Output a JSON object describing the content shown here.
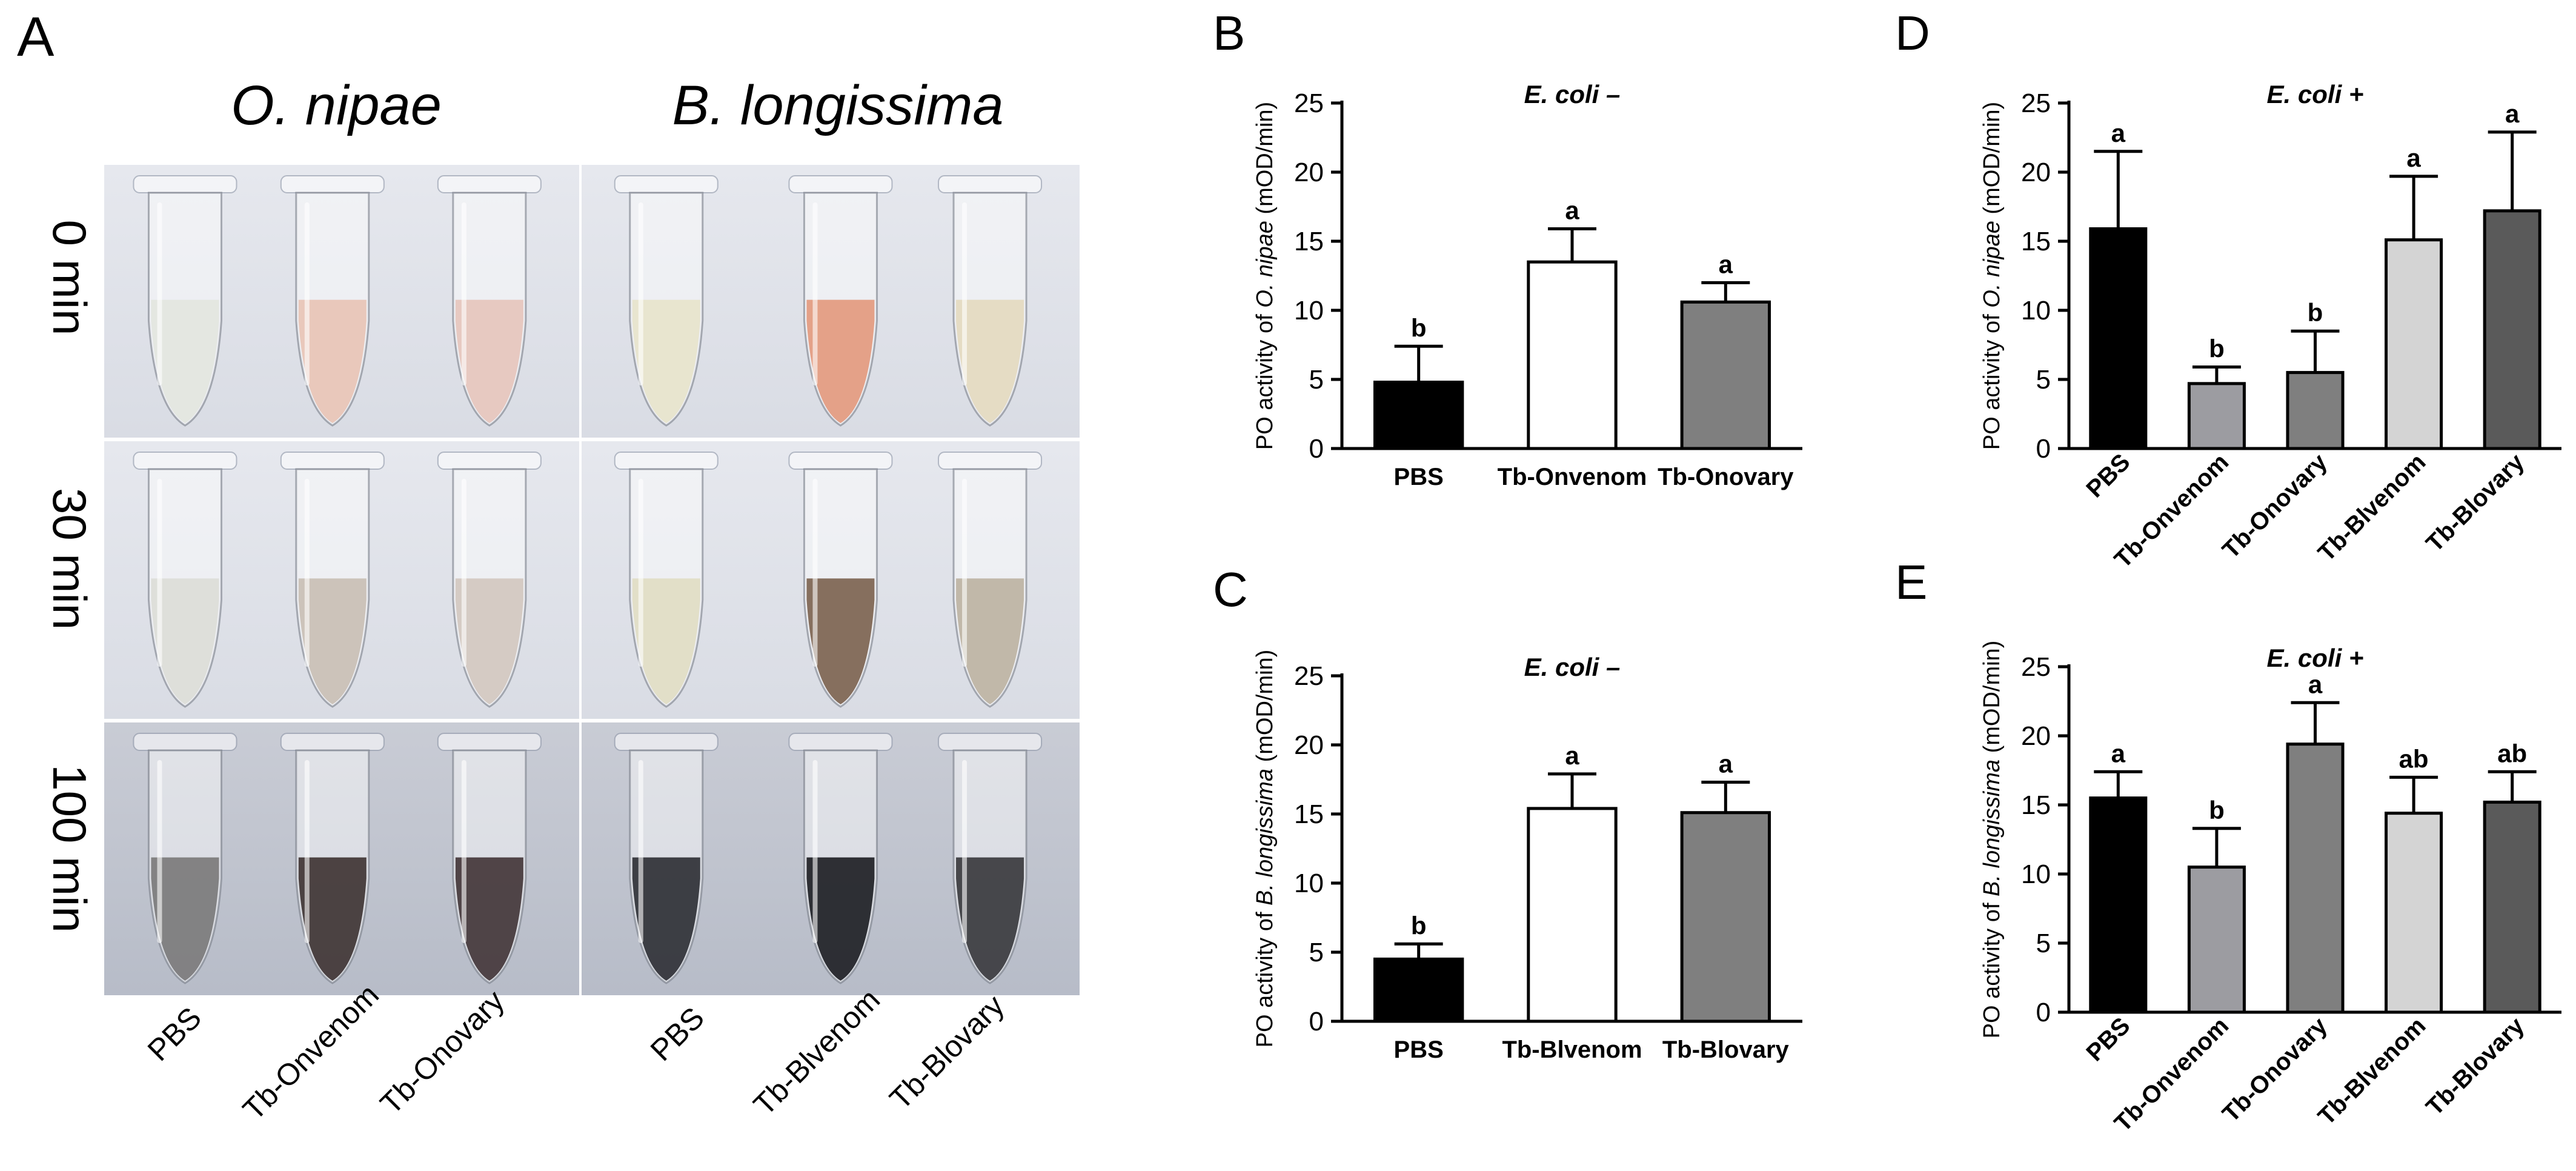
{
  "panel_letters": {
    "A": "A",
    "B": "B",
    "C": "C",
    "D": "D",
    "E": "E"
  },
  "photo": {
    "species": [
      "O. nipae",
      "B. longissima"
    ],
    "times": [
      "0 min",
      "30 min",
      "100 min"
    ],
    "tube_labels_left": [
      "PBS",
      "Tb-Onvenom",
      "Tb-Onovary"
    ],
    "tube_labels_right": [
      "PBS",
      "Tb-Blvenom",
      "Tb-Blovary"
    ]
  },
  "colors": {
    "black": "#000000",
    "white": "#ffffff",
    "gray": "#7f7f7f",
    "midgray": "#9c9ca1",
    "lightgray": "#d4d4d4",
    "darkgray": "#5a5a5a"
  },
  "chart_data": [
    {
      "id": "B",
      "type": "bar",
      "title": "E. coli –",
      "ylabel_pre": "PO activity of ",
      "ylabel_species": "O. nipae",
      "ylabel_post": " (mOD/min)",
      "ylim": [
        0,
        25
      ],
      "yticks": [
        "0",
        "5",
        "10",
        "15",
        "20",
        "25"
      ],
      "categories": [
        "PBS",
        "Tb-Onvenom",
        "Tb-Onovary"
      ],
      "values": [
        4.8,
        13.5,
        10.6
      ],
      "errors": [
        2.6,
        2.4,
        1.4
      ],
      "letters": [
        "b",
        "a",
        "a"
      ],
      "colors": [
        "#000000",
        "#ffffff",
        "#7f7f7f"
      ],
      "rotate_labels": false
    },
    {
      "id": "C",
      "type": "bar",
      "title": "E. coli –",
      "ylabel_pre": "PO activity of ",
      "ylabel_species": "B. longissima",
      "ylabel_post": " (mOD/min)",
      "ylim": [
        0,
        25
      ],
      "yticks": [
        "0",
        "5",
        "10",
        "15",
        "20",
        "25"
      ],
      "categories": [
        "PBS",
        "Tb-Blvenom",
        "Tb-Blovary"
      ],
      "values": [
        4.5,
        15.4,
        15.1
      ],
      "errors": [
        1.1,
        2.5,
        2.2
      ],
      "letters": [
        "b",
        "a",
        "a"
      ],
      "colors": [
        "#000000",
        "#ffffff",
        "#7f7f7f"
      ],
      "rotate_labels": false
    },
    {
      "id": "D",
      "type": "bar",
      "title": "E. coli +",
      "ylabel_pre": "PO activity of ",
      "ylabel_species": "O. nipae",
      "ylabel_post": " (mOD/min)",
      "ylim": [
        0,
        25
      ],
      "yticks": [
        "0",
        "5",
        "10",
        "15",
        "20",
        "25"
      ],
      "categories": [
        "PBS",
        "Tb-Onvenom",
        "Tb-Onovary",
        "Tb-Blvenom",
        "Tb-Blovary"
      ],
      "values": [
        15.9,
        4.7,
        5.5,
        15.1,
        17.2
      ],
      "errors": [
        5.6,
        1.2,
        3.0,
        4.6,
        5.7
      ],
      "letters": [
        "a",
        "b",
        "b",
        "a",
        "a"
      ],
      "colors": [
        "#000000",
        "#9c9ca1",
        "#7f7f7f",
        "#d4d4d4",
        "#5a5a5a"
      ],
      "rotate_labels": true
    },
    {
      "id": "E",
      "type": "bar",
      "title": "E. coli +",
      "ylabel_pre": "PO activity of ",
      "ylabel_species": "B. longissima",
      "ylabel_post": " (mOD/min)",
      "ylim": [
        0,
        25
      ],
      "yticks": [
        "0",
        "5",
        "10",
        "15",
        "20",
        "25"
      ],
      "categories": [
        "PBS",
        "Tb-Onvenom",
        "Tb-Onovary",
        "Tb-Blvenom",
        "Tb-Blovary"
      ],
      "values": [
        15.5,
        10.5,
        19.4,
        14.4,
        15.2
      ],
      "errors": [
        1.9,
        2.8,
        3.0,
        2.6,
        2.2
      ],
      "letters": [
        "a",
        "b",
        "a",
        "ab",
        "ab"
      ],
      "colors": [
        "#000000",
        "#9c9ca1",
        "#7f7f7f",
        "#d4d4d4",
        "#5a5a5a"
      ],
      "rotate_labels": true
    }
  ]
}
